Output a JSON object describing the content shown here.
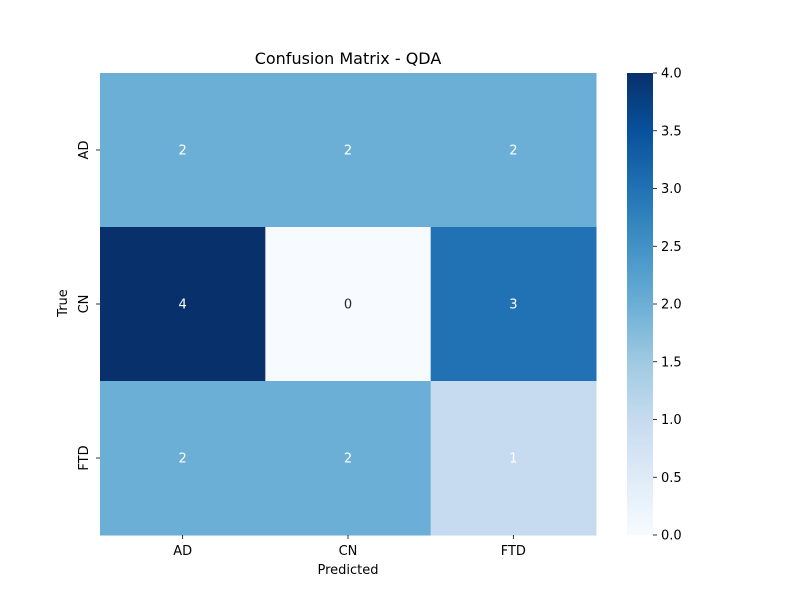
{
  "chart_data": {
    "type": "heatmap",
    "title": "Confusion Matrix - QDA",
    "xlabel": "Predicted",
    "ylabel": "True",
    "x_categories": [
      "AD",
      "CN",
      "FTD"
    ],
    "y_categories": [
      "AD",
      "CN",
      "FTD"
    ],
    "values": [
      [
        2,
        2,
        2
      ],
      [
        4,
        0,
        3
      ],
      [
        2,
        2,
        1
      ]
    ],
    "colormap": "Blues",
    "color_range": [
      0,
      4
    ],
    "colorbar_ticks": [
      "0.0",
      "0.5",
      "1.0",
      "1.5",
      "2.0",
      "2.5",
      "3.0",
      "3.5",
      "4.0"
    ],
    "colorbar_tick_values": [
      0,
      0.5,
      1,
      1.5,
      2,
      2.5,
      3,
      3.5,
      4
    ]
  }
}
